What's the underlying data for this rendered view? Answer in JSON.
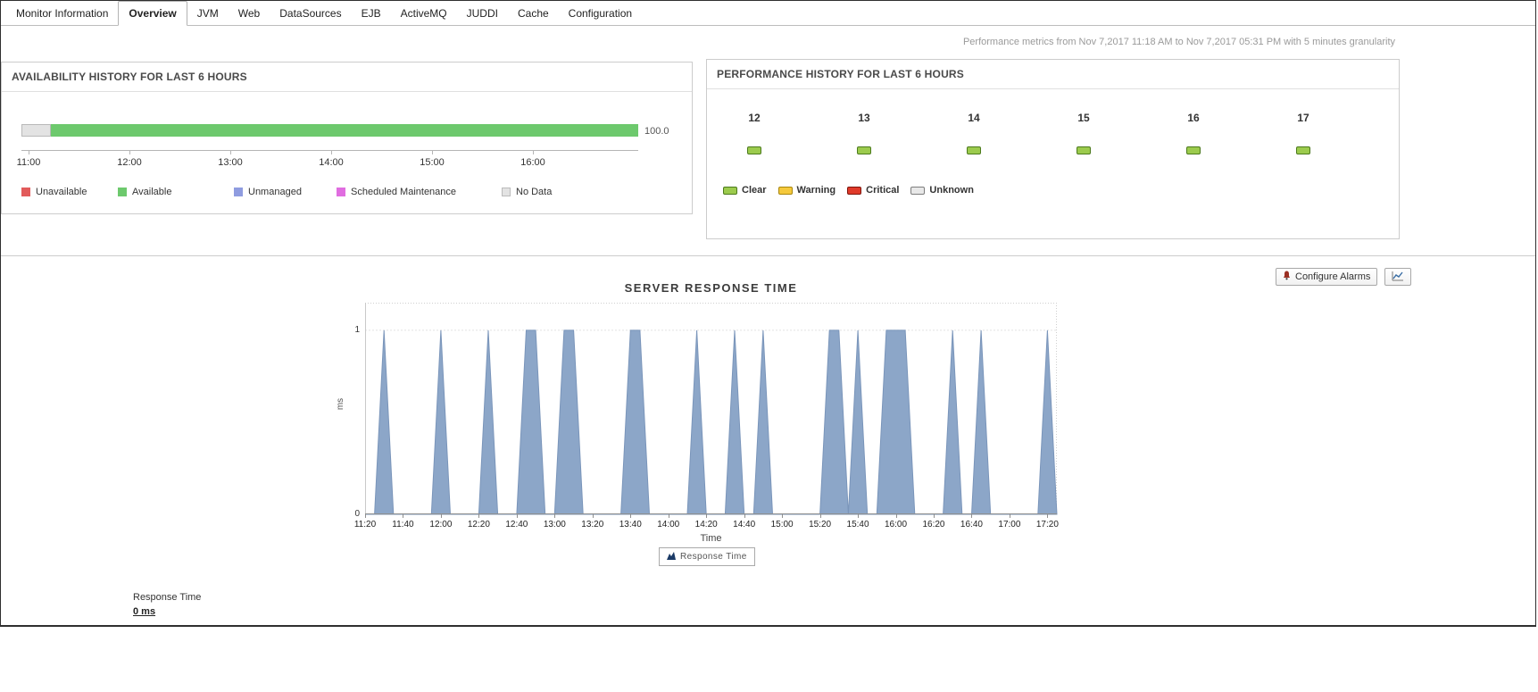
{
  "tabs": {
    "items": [
      {
        "label": "Monitor Information",
        "active": false
      },
      {
        "label": "Overview",
        "active": true
      },
      {
        "label": "JVM",
        "active": false
      },
      {
        "label": "Web",
        "active": false
      },
      {
        "label": "DataSources",
        "active": false
      },
      {
        "label": "EJB",
        "active": false
      },
      {
        "label": "ActiveMQ",
        "active": false
      },
      {
        "label": "JUDDI",
        "active": false
      },
      {
        "label": "Cache",
        "active": false
      },
      {
        "label": "Configuration",
        "active": false
      }
    ]
  },
  "header": {
    "metrics_note": "Performance metrics from Nov 7,2017 11:18 AM to Nov 7,2017 05:31 PM with 5 minutes granularity"
  },
  "availability": {
    "title": "AVAILABILITY HISTORY FOR LAST 6 HOURS",
    "value_label": "100.0",
    "segments": [
      {
        "type": "nodata",
        "color": "#e3e3e3",
        "width_pct": 4.8
      },
      {
        "type": "available",
        "color": "#6dc96d",
        "width_pct": 95.2
      }
    ],
    "axis_ticks": [
      "11:00",
      "12:00",
      "13:00",
      "14:00",
      "15:00",
      "16:00"
    ],
    "legend": [
      {
        "label": "Unavailable",
        "color": "#e25b5b"
      },
      {
        "label": "Available",
        "color": "#6dc96d"
      },
      {
        "label": "Unmanaged",
        "color": "#8f9ce0"
      },
      {
        "label": "Scheduled Maintenance",
        "color": "#e06de0"
      },
      {
        "label": "No Data",
        "color": "#e3e3e3"
      }
    ]
  },
  "performance": {
    "title": "PERFORMANCE HISTORY FOR LAST 6 HOURS",
    "hours": [
      "12",
      "13",
      "14",
      "15",
      "16",
      "17"
    ],
    "hour_status": {
      "label": "Clear",
      "fill": "#9ccb4d",
      "border": "#4c7a1d"
    },
    "legend": [
      {
        "label": "Clear",
        "fill": "#9ccb4d",
        "border": "#4c7a1d"
      },
      {
        "label": "Warning",
        "fill": "#f5c93c",
        "border": "#a8860d"
      },
      {
        "label": "Critical",
        "fill": "#e03a2a",
        "border": "#7e150c"
      },
      {
        "label": "Unknown",
        "fill": "#e8e8e8",
        "border": "#7d7d7d"
      }
    ]
  },
  "toolbar": {
    "configure_alarms_label": "Configure Alarms"
  },
  "icons": {
    "configure_alarms": "bell-icon",
    "export_chart": "line-chart-icon",
    "response_time_legend": "area-series-icon"
  },
  "chart_data": {
    "type": "area",
    "title": "SERVER RESPONSE TIME",
    "xlabel": "Time",
    "ylabel": "ms",
    "ylim": [
      0,
      1.15
    ],
    "yticks": [
      0,
      1
    ],
    "x_range": [
      "11:20",
      "17:25"
    ],
    "x_tick_labels": [
      "11:20",
      "11:40",
      "12:00",
      "12:20",
      "12:40",
      "13:00",
      "13:20",
      "13:40",
      "14:00",
      "14:20",
      "14:40",
      "15:00",
      "15:20",
      "15:40",
      "16:00",
      "16:20",
      "16:40",
      "17:00",
      "17:20"
    ],
    "grid": "dotted-top-right-and-y1",
    "legend_position": "bottom-center",
    "series": [
      {
        "name": "Response Time",
        "fill": "#8ca6c8",
        "stroke": "#7a95ba",
        "times": [
          "11:20",
          "11:25",
          "11:30",
          "11:35",
          "11:40",
          "11:45",
          "11:50",
          "11:55",
          "12:00",
          "12:05",
          "12:10",
          "12:15",
          "12:20",
          "12:25",
          "12:30",
          "12:35",
          "12:40",
          "12:45",
          "12:50",
          "12:55",
          "13:00",
          "13:05",
          "13:10",
          "13:15",
          "13:20",
          "13:25",
          "13:30",
          "13:35",
          "13:40",
          "13:45",
          "13:50",
          "13:55",
          "14:00",
          "14:05",
          "14:10",
          "14:15",
          "14:20",
          "14:25",
          "14:30",
          "14:35",
          "14:40",
          "14:45",
          "14:50",
          "14:55",
          "15:00",
          "15:05",
          "15:10",
          "15:15",
          "15:20",
          "15:25",
          "15:30",
          "15:35",
          "15:40",
          "15:45",
          "15:50",
          "15:55",
          "16:00",
          "16:05",
          "16:10",
          "16:15",
          "16:20",
          "16:25",
          "16:30",
          "16:35",
          "16:40",
          "16:45",
          "16:50",
          "16:55",
          "17:00",
          "17:05",
          "17:10",
          "17:15",
          "17:20",
          "17:25"
        ],
        "values": [
          0,
          0,
          1,
          0,
          0,
          0,
          0,
          0,
          1,
          0,
          0,
          0,
          0,
          1,
          0,
          0,
          0,
          1,
          1,
          0,
          0,
          1,
          1,
          0,
          0,
          0,
          0,
          0,
          1,
          1,
          0,
          0,
          0,
          0,
          0,
          1,
          0,
          0,
          0,
          1,
          0,
          0,
          1,
          0,
          0,
          0,
          0,
          0,
          0,
          1,
          1,
          0,
          1,
          0,
          0,
          1,
          1,
          1,
          0,
          0,
          0,
          0,
          1,
          0,
          0,
          1,
          0,
          0,
          0,
          0,
          0,
          0,
          1,
          0
        ]
      }
    ]
  },
  "footer": {
    "metric_label": "Response Time",
    "metric_value": "0 ms"
  }
}
